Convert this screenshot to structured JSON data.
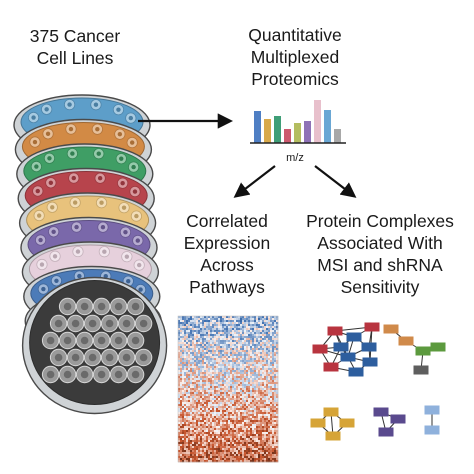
{
  "labels": {
    "cell_lines": "375 Cancer\nCell Lines",
    "proteomics": "Quantitative\nMultiplexed\nProteomics",
    "mz": "m/z",
    "correlated": "Correlated\nExpression\nAcross\nPathways",
    "complexes": "Protein Complexes\nAssociated With\nMSI and shRNA\nSensitivity"
  },
  "spectrum_colors": [
    "#4f7fc4",
    "#d8a94b",
    "#3f9e77",
    "#cc5a6e",
    "#b4bd60",
    "#8e72b6",
    "#e8c0cc",
    "#6aa7d4",
    "#a8a8a8"
  ],
  "dish_colors": [
    "#5d9ec9",
    "#d28a45",
    "#3f9e65",
    "#b7444c",
    "#e8c27c",
    "#7a68aa",
    "#e6d0dc",
    "#4c7bb8",
    "#e0a932",
    "#3b3b3b"
  ],
  "network_colors": {
    "red": "#b8343f",
    "blue": "#2d5e9e",
    "orange": "#d08a4a",
    "green": "#5c9a3e",
    "grey": "#5e5e5e",
    "yellow": "#d6a437",
    "purple": "#5a4a8e",
    "lightblue": "#8fb1dc"
  },
  "heatmap_colors": {
    "low": "#3e6fb0",
    "high": "#c7552d"
  }
}
